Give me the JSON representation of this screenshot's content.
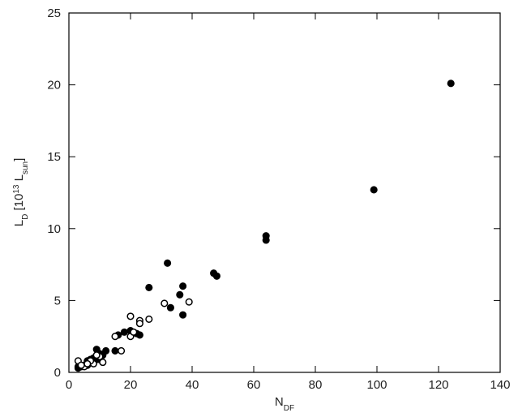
{
  "chart_data": {
    "type": "scatter",
    "xlabel": [
      {
        "text": "N"
      },
      {
        "text": "DF",
        "sub": true
      }
    ],
    "ylabel": [
      {
        "text": "L"
      },
      {
        "text": "D",
        "sub": true
      },
      {
        "text": " [10"
      },
      {
        "text": "13",
        "sup": true
      },
      {
        "text": " L"
      },
      {
        "text": "sun",
        "sub": true
      },
      {
        "text": "]"
      }
    ],
    "xlim": [
      0,
      140
    ],
    "xticks": [
      0,
      20,
      40,
      60,
      80,
      100,
      120,
      140
    ],
    "ylim": [
      0,
      25
    ],
    "yticks": [
      0,
      5,
      10,
      15,
      20,
      25
    ],
    "series": [
      {
        "color": "#000",
        "filled": true,
        "x": [
          124,
          99,
          64,
          64,
          47,
          48,
          32,
          26,
          37,
          36,
          37,
          33,
          22,
          23,
          20,
          18,
          16,
          15,
          12,
          9,
          10,
          8,
          7,
          6,
          5,
          3,
          4,
          10,
          11,
          7,
          9,
          6,
          3
        ],
        "y": [
          20.1,
          12.7,
          9.5,
          9.2,
          6.9,
          6.7,
          7.6,
          5.9,
          6.0,
          5.4,
          4.0,
          4.5,
          2.7,
          2.6,
          2.9,
          2.8,
          2.6,
          1.5,
          1.5,
          1.6,
          1.3,
          1.0,
          0.9,
          0.8,
          0.5,
          0.3,
          0.4,
          0.9,
          1.2,
          0.7,
          0.9,
          0.5,
          0.4
        ]
      },
      {
        "color": "#000",
        "filled": false,
        "x": [
          20,
          31,
          39,
          26,
          23,
          23,
          20,
          21,
          15,
          17,
          11,
          10,
          8,
          7,
          5,
          3,
          4,
          6,
          9
        ],
        "y": [
          3.9,
          4.8,
          4.9,
          3.7,
          3.6,
          3.4,
          2.5,
          2.8,
          2.5,
          1.5,
          0.7,
          1.1,
          0.6,
          0.8,
          0.4,
          0.8,
          0.5,
          0.6,
          1.2
        ]
      }
    ]
  }
}
